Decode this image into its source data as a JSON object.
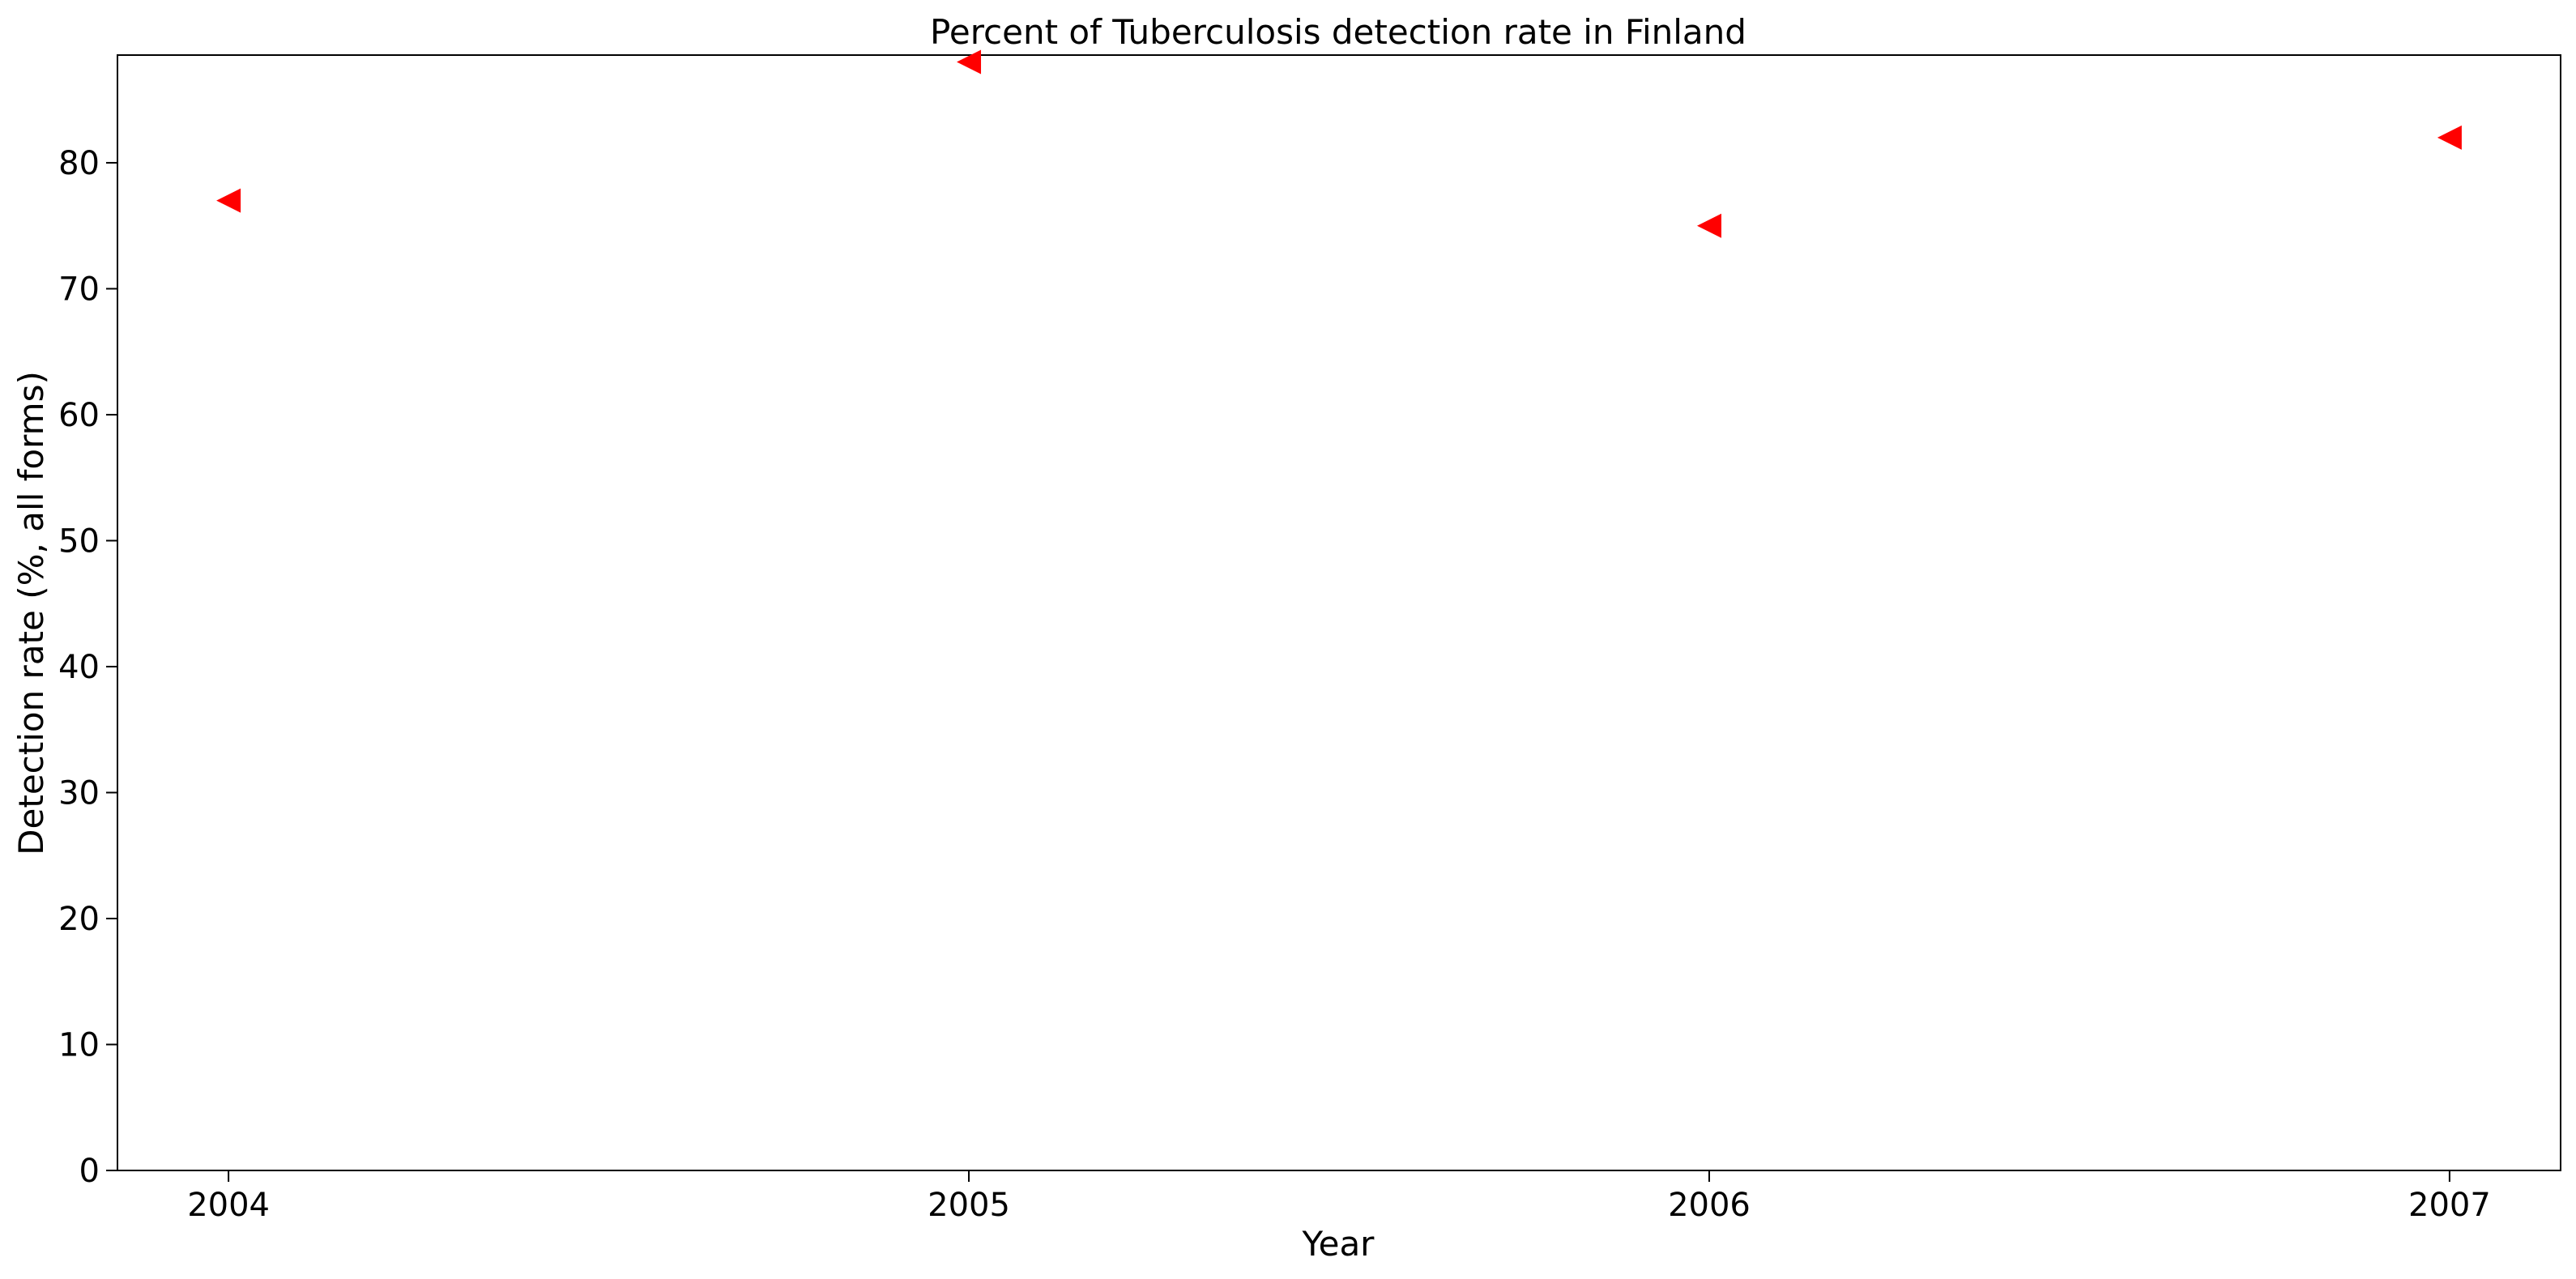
{
  "chart_data": {
    "type": "scatter",
    "title": "Percent of Tuberculosis detection rate in Finland",
    "xlabel": "Year",
    "ylabel": "Detection rate (%, all forms)",
    "x": [
      2004,
      2005,
      2006,
      2007
    ],
    "y": [
      77,
      88,
      75,
      82
    ],
    "x_ticks": [
      "2004",
      "2005",
      "2006",
      "2007"
    ],
    "y_ticks": [
      "0",
      "10",
      "20",
      "30",
      "40",
      "50",
      "60",
      "70",
      "80"
    ],
    "xlim": [
      2003.85,
      2007.15
    ],
    "ylim": [
      0,
      88.55
    ],
    "marker": "triangle-left",
    "marker_color": "#ff0000",
    "grid": false,
    "legend": "none"
  }
}
